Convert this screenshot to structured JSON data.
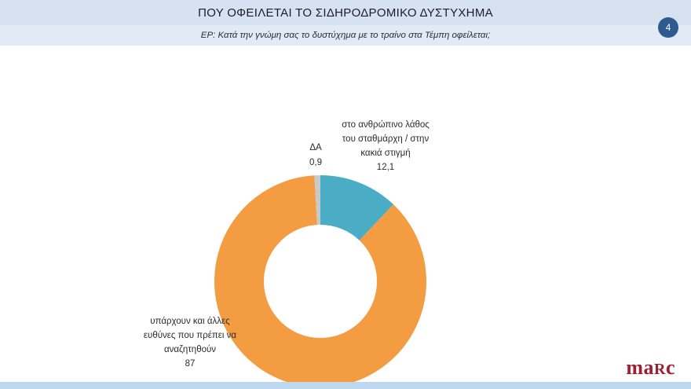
{
  "header": {
    "title": "ΠΟΥ ΟΦΕΙΛΕΤΑΙ ΤΟ ΣΙΔΗΡΟΔΡΟΜΙΚΟ ΔΥΣΤΥΧΗΜΑ",
    "subtitle": "ΕΡ: Κατά την γνώμη σας το δυστύχημα με το τραίνο στα Τέμπη οφείλεται;",
    "page_number": "4"
  },
  "footer": {
    "logo": {
      "part1": "ma",
      "part2": "R",
      "part3": "c"
    }
  },
  "chart_data": {
    "type": "pie",
    "donut": true,
    "title": "ΠΟΥ ΟΦΕΙΛΕΤΑΙ ΤΟ ΣΙΔΗΡΟΔΡΟΜΙΚΟ ΔΥΣΤΥΧΗΜΑ",
    "subtitle": "ΕΡ: Κατά την γνώμη σας το δυστύχημα με το τραίνο στα Τέμπη οφείλεται;",
    "start_angle_deg": 0,
    "direction": "clockwise",
    "hole_ratio": 0.53,
    "slices": [
      {
        "label": "στο ανθρώπινο λάθος του σταθμάρχη / στην κακιά στιγμή",
        "value": 12.1,
        "display_value": "12,1",
        "color": "#4bacc6"
      },
      {
        "label": "υπάρχουν και άλλες ευθύνες που πρέπει να αναζητηθούν",
        "value": 87,
        "display_value": "87",
        "color": "#f49c42"
      },
      {
        "label": "ΔΑ",
        "value": 0.9,
        "display_value": "0,9",
        "color": "#c9c9c9"
      }
    ]
  }
}
